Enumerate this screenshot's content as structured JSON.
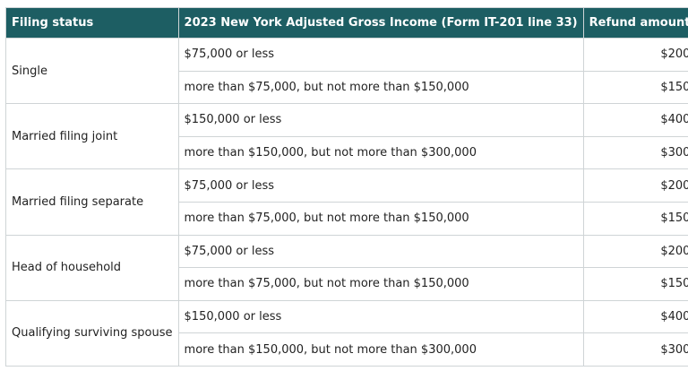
{
  "table": {
    "header": [
      "Filing status",
      "2023 New York Adjusted Gross Income (Form IT-201 line 33)",
      "Refund amount"
    ],
    "groups": [
      {
        "status": "Single",
        "rows": [
          [
            "$75,000 or less",
            "$200"
          ],
          [
            "more than $75,000, but not more than $150,000",
            "$150"
          ]
        ]
      },
      {
        "status": "Married filing joint",
        "rows": [
          [
            "$150,000 or less",
            "$400"
          ],
          [
            "more than $150,000, but not more than $300,000",
            "$300"
          ]
        ]
      },
      {
        "status": "Married filing separate",
        "rows": [
          [
            "$75,000 or less",
            "$200"
          ],
          [
            "more than $75,000, but not more than $150,000",
            "$150"
          ]
        ]
      },
      {
        "status": "Head of household",
        "rows": [
          [
            "$75,000 or less",
            "$200"
          ],
          [
            "more than $75,000, but not more than $150,000",
            "$150"
          ]
        ]
      },
      {
        "status": "Qualifying surviving spouse",
        "rows": [
          [
            "$150,000 or less",
            "$400"
          ],
          [
            "more than $150,000, but not more than $300,000",
            "$300"
          ]
        ]
      }
    ]
  }
}
